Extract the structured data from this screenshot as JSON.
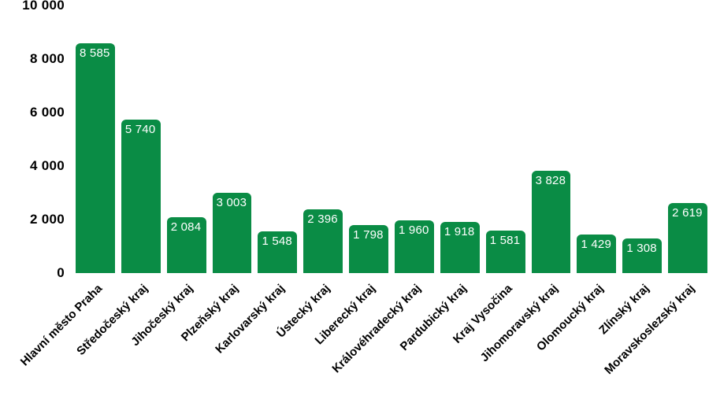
{
  "chart_data": {
    "type": "bar",
    "title": "",
    "xlabel": "",
    "ylabel": "",
    "categories": [
      "Hlavní město Praha",
      "Středočeský kraj",
      "Jihočeský kraj",
      "Plzeňský kraj",
      "Karlovarský kraj",
      "Ústecký kraj",
      "Liberecký kraj",
      "Královéhradecký kraj",
      "Pardubický kraj",
      "Kraj Vysočina",
      "Jihomoravský kraj",
      "Olomoucký kraj",
      "Zlínský kraj",
      "Moravskoslezský kraj"
    ],
    "values": [
      8585,
      5740,
      2084,
      3003,
      1548,
      2396,
      1798,
      1960,
      1918,
      1581,
      3828,
      1429,
      1308,
      2619
    ],
    "bar_labels": [
      "8 585",
      "5 740",
      "2 084",
      "3 003",
      "1 548",
      "2 396",
      "1 798",
      "1 960",
      "1 918",
      "1 581",
      "3 828",
      "1 429",
      "1 308",
      "2 619"
    ],
    "ylim": [
      0,
      10000
    ],
    "y_ticks": [
      {
        "value": 0,
        "label": "0"
      },
      {
        "value": 2000,
        "label": "2 000"
      },
      {
        "value": 4000,
        "label": "4 000"
      },
      {
        "value": 6000,
        "label": "6 000"
      },
      {
        "value": 8000,
        "label": "8 000"
      },
      {
        "value": 10000,
        "label": "10 000"
      }
    ],
    "grid": false,
    "legend": "none",
    "colors": {
      "bar": "#0a8c45",
      "bar_label": "#ffffff",
      "axis_text": "#000000",
      "background": "#ffffff"
    }
  }
}
